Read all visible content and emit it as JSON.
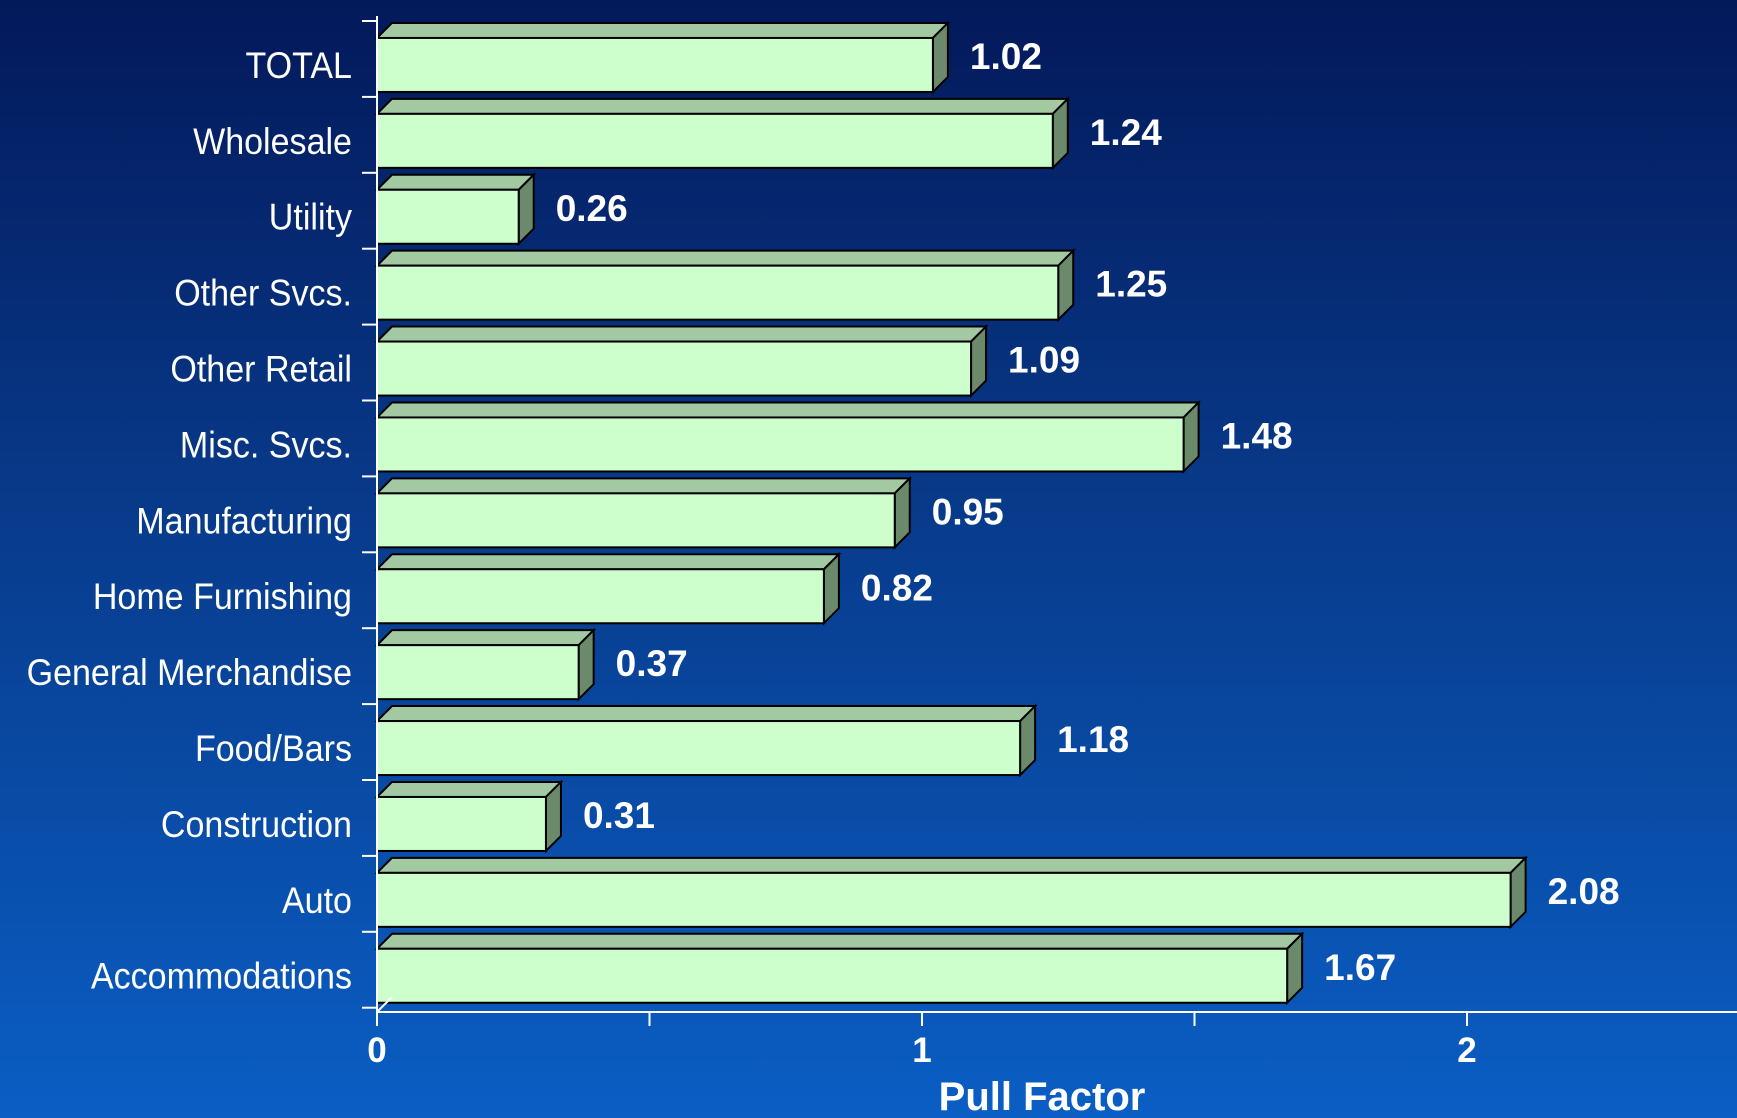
{
  "chart_data": {
    "type": "bar",
    "orientation": "horizontal",
    "style": "3d",
    "categories": [
      "TOTAL",
      "Wholesale",
      "Utility",
      "Other Svcs.",
      "Other Retail",
      "Misc. Svcs.",
      "Manufacturing",
      "Home Furnishing",
      "General Merchandise",
      "Food/Bars",
      "Construction",
      "Auto",
      "Accommodations"
    ],
    "values": [
      1.02,
      1.24,
      0.26,
      1.25,
      1.09,
      1.48,
      0.95,
      0.82,
      0.37,
      1.18,
      0.31,
      2.08,
      1.67
    ],
    "value_labels": [
      "1.02",
      "1.24",
      "0.26",
      "1.25",
      "1.09",
      "1.48",
      "0.95",
      "0.82",
      "0.37",
      "1.18",
      "0.31",
      "2.08",
      "1.67"
    ],
    "xlabel": "Pull Factor",
    "xlim": [
      0,
      2.5
    ],
    "x_ticks": [
      0,
      1,
      2
    ],
    "x_tick_labels": [
      "0",
      "1",
      "2"
    ],
    "grid": false,
    "legend": "none",
    "colors": {
      "bar_face": "#ccffcc",
      "bar_top": "#a3c9a3",
      "bar_side": "#6b8a6b",
      "bar_outline": "#000000",
      "axis": "#ffffff",
      "text": "#ffffff",
      "background_top": "#03195a",
      "background_bottom": "#0a5ec4"
    }
  }
}
